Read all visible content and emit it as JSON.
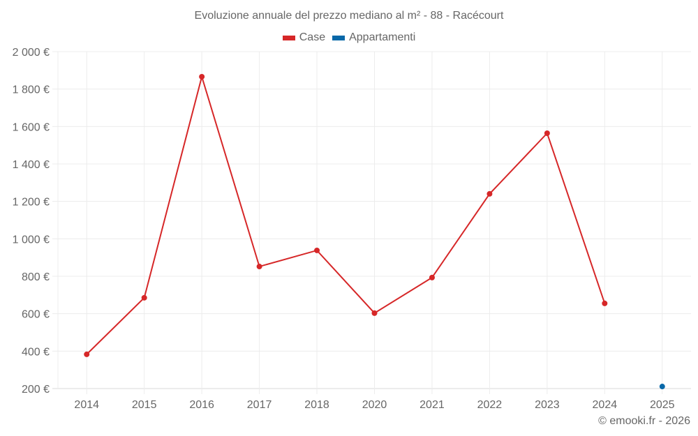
{
  "chart_data": {
    "type": "line",
    "title": "Evoluzione annuale del prezzo mediano al m² - 88 - Racécourt",
    "xlabel": "",
    "ylabel": "",
    "categories": [
      "2014",
      "2015",
      "2016",
      "2017",
      "2018",
      "2020",
      "2021",
      "2022",
      "2023",
      "2024",
      "2025"
    ],
    "series": [
      {
        "name": "Case",
        "color": "#d62728",
        "values": [
          383,
          685,
          1866,
          852,
          938,
          603,
          793,
          1240,
          1564,
          655,
          null
        ]
      },
      {
        "name": "Appartamenti",
        "color": "#0868a8",
        "values": [
          null,
          null,
          null,
          null,
          null,
          null,
          null,
          null,
          null,
          null,
          211
        ]
      }
    ],
    "ylim": [
      200,
      2000
    ],
    "yticks": [
      200,
      400,
      600,
      800,
      1000,
      1200,
      1400,
      1600,
      1800,
      2000
    ],
    "ytick_labels": [
      "200 €",
      "400 €",
      "600 €",
      "800 €",
      "1 000 €",
      "1 200 €",
      "1 400 €",
      "1 600 €",
      "1 800 €",
      "2 000 €"
    ],
    "grid": true,
    "legend_position": "top"
  },
  "legend": [
    {
      "label": "Case",
      "color": "#d62728"
    },
    {
      "label": "Appartamenti",
      "color": "#0868a8"
    }
  ],
  "credit": "© emooki.fr - 2026"
}
